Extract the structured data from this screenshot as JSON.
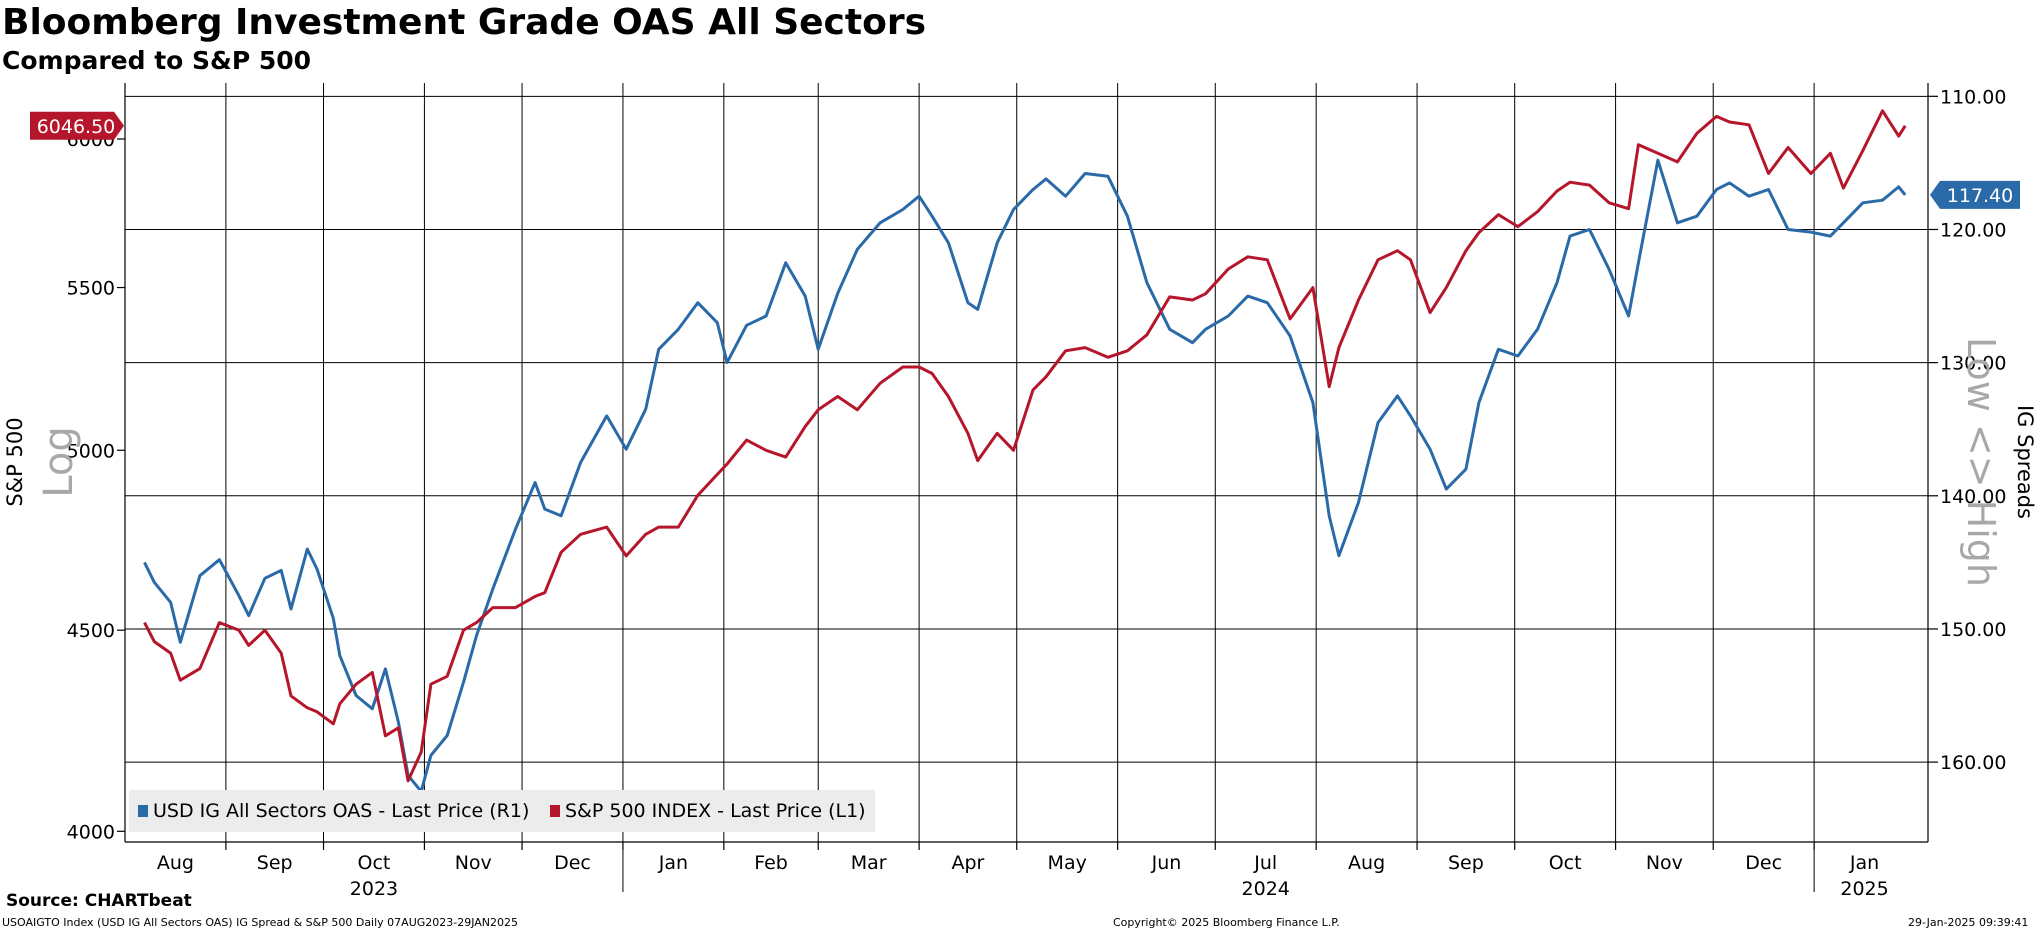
{
  "header": {
    "title": "Bloomberg Investment Grade OAS All Sectors",
    "subtitle": "Compared to S&P 500"
  },
  "footer": {
    "source": "Source: CHARTbeat",
    "description": "USOAIGTO Index (USD IG All Sectors OAS) IG Spread & S&P 500  Daily 07AUG2023-29JAN2025",
    "copyright": "Copyright© 2025 Bloomberg Finance L.P.",
    "timestamp": "29-Jan-2025 09:39:41"
  },
  "colors": {
    "spread": "#2a6aa8",
    "sp500": "#b5162b",
    "grid": "#000000"
  },
  "chart_data": {
    "type": "line",
    "title": "Bloomberg Investment Grade OAS All Sectors",
    "subtitle": "Compared to S&P 500",
    "left_axis": {
      "label": "S&P 500",
      "scale_note": "Log",
      "range": [
        3975,
        6200
      ],
      "ticks": [
        4000,
        4500,
        5000,
        5500,
        6000
      ],
      "tick_labels": [
        "4000",
        "4500",
        "5000",
        "5500",
        "6000"
      ]
    },
    "right_axis": {
      "label": "IG Spreads",
      "note": "Low <> High",
      "inverted": true,
      "range": [
        109,
        166
      ],
      "ticks": [
        110,
        120,
        130,
        140,
        150,
        160
      ],
      "tick_labels": [
        "110.00",
        "120.00",
        "130.00",
        "140.00",
        "150.00",
        "160.00"
      ]
    },
    "x_axis": {
      "months": [
        "Aug",
        "Sep",
        "Oct",
        "Nov",
        "Dec",
        "Jan",
        "Feb",
        "Mar",
        "Apr",
        "May",
        "Jun",
        "Jul",
        "Aug",
        "Sep",
        "Oct",
        "Nov",
        "Dec",
        "Jan"
      ],
      "years": [
        "2023",
        "2024",
        "2025"
      ]
    },
    "legend": [
      "USD IG All Sectors OAS - Last Price (R1)",
      "S&P 500 INDEX - Last Price (L1)"
    ],
    "last_labels": {
      "sp500": "6046.50",
      "spread": "117.40"
    },
    "series": [
      {
        "name": "USD IG All Sectors OAS - Last Price (R1)",
        "axis": "right",
        "color": "#2a6aa8",
        "dates": [
          "2023-08-07",
          "2023-08-10",
          "2023-08-15",
          "2023-08-18",
          "2023-08-24",
          "2023-08-30",
          "2023-09-05",
          "2023-09-08",
          "2023-09-13",
          "2023-09-18",
          "2023-09-21",
          "2023-09-26",
          "2023-09-29",
          "2023-10-04",
          "2023-10-06",
          "2023-10-11",
          "2023-10-16",
          "2023-10-20",
          "2023-10-24",
          "2023-10-27",
          "2023-10-31",
          "2023-11-03",
          "2023-11-08",
          "2023-11-13",
          "2023-11-17",
          "2023-11-22",
          "2023-11-29",
          "2023-12-05",
          "2023-12-08",
          "2023-12-13",
          "2023-12-19",
          "2023-12-27",
          "2024-01-02",
          "2024-01-08",
          "2024-01-12",
          "2024-01-18",
          "2024-01-24",
          "2024-01-30",
          "2024-02-02",
          "2024-02-08",
          "2024-02-14",
          "2024-02-20",
          "2024-02-26",
          "2024-03-01",
          "2024-03-07",
          "2024-03-13",
          "2024-03-20",
          "2024-03-27",
          "2024-04-01",
          "2024-04-05",
          "2024-04-10",
          "2024-04-16",
          "2024-04-19",
          "2024-04-25",
          "2024-04-30",
          "2024-05-06",
          "2024-05-10",
          "2024-05-16",
          "2024-05-22",
          "2024-05-29",
          "2024-06-04",
          "2024-06-10",
          "2024-06-17",
          "2024-06-24",
          "2024-06-28",
          "2024-07-05",
          "2024-07-11",
          "2024-07-17",
          "2024-07-24",
          "2024-07-31",
          "2024-08-05",
          "2024-08-08",
          "2024-08-14",
          "2024-08-20",
          "2024-08-26",
          "2024-08-30",
          "2024-09-05",
          "2024-09-10",
          "2024-09-16",
          "2024-09-20",
          "2024-09-26",
          "2024-10-02",
          "2024-10-08",
          "2024-10-14",
          "2024-10-18",
          "2024-10-24",
          "2024-10-30",
          "2024-11-05",
          "2024-11-08",
          "2024-11-14",
          "2024-11-20",
          "2024-11-26",
          "2024-12-02",
          "2024-12-06",
          "2024-12-12",
          "2024-12-18",
          "2024-12-24",
          "2024-12-31",
          "2025-01-06",
          "2025-01-10",
          "2025-01-16",
          "2025-01-22",
          "2025-01-27",
          "2025-01-29"
        ],
        "values": [
          145.0,
          146.5,
          148.0,
          151.0,
          146.0,
          144.8,
          147.5,
          149.0,
          146.2,
          145.6,
          148.5,
          144.0,
          145.5,
          149.2,
          152.0,
          155.0,
          156.0,
          153.0,
          157.0,
          161.0,
          162.2,
          159.5,
          158.0,
          154.0,
          150.5,
          147.0,
          142.5,
          139.0,
          141.0,
          141.5,
          137.5,
          134.0,
          136.5,
          133.5,
          129.0,
          127.5,
          125.5,
          127.0,
          130.0,
          127.2,
          126.5,
          122.5,
          125.0,
          129.0,
          124.8,
          121.5,
          119.5,
          118.5,
          117.5,
          119.0,
          121.0,
          125.5,
          126.0,
          121.0,
          118.5,
          117.0,
          116.2,
          117.5,
          115.8,
          116.0,
          119.0,
          124.0,
          127.5,
          128.5,
          127.5,
          126.5,
          125.0,
          125.5,
          128.0,
          133.0,
          141.5,
          144.5,
          140.5,
          134.5,
          132.5,
          134.0,
          136.5,
          139.5,
          138.0,
          133.0,
          129.0,
          129.5,
          127.5,
          124.0,
          120.5,
          120.0,
          123.0,
          126.5,
          122.5,
          114.8,
          119.5,
          119.0,
          117.0,
          116.5,
          117.5,
          117.0,
          120.0,
          120.2,
          120.5,
          119.5,
          118.0,
          117.8,
          116.8,
          117.4
        ]
      },
      {
        "name": "S&P 500 INDEX - Last Price (L1)",
        "axis": "left",
        "color": "#b5162b",
        "dates": [
          "2023-08-07",
          "2023-08-10",
          "2023-08-15",
          "2023-08-18",
          "2023-08-24",
          "2023-08-30",
          "2023-09-05",
          "2023-09-08",
          "2023-09-13",
          "2023-09-18",
          "2023-09-21",
          "2023-09-26",
          "2023-09-29",
          "2023-10-04",
          "2023-10-06",
          "2023-10-11",
          "2023-10-16",
          "2023-10-20",
          "2023-10-24",
          "2023-10-27",
          "2023-10-31",
          "2023-11-03",
          "2023-11-08",
          "2023-11-13",
          "2023-11-17",
          "2023-11-22",
          "2023-11-29",
          "2023-12-05",
          "2023-12-08",
          "2023-12-13",
          "2023-12-19",
          "2023-12-27",
          "2024-01-02",
          "2024-01-08",
          "2024-01-12",
          "2024-01-18",
          "2024-01-24",
          "2024-01-30",
          "2024-02-02",
          "2024-02-08",
          "2024-02-14",
          "2024-02-20",
          "2024-02-26",
          "2024-03-01",
          "2024-03-07",
          "2024-03-13",
          "2024-03-20",
          "2024-03-27",
          "2024-04-01",
          "2024-04-05",
          "2024-04-10",
          "2024-04-16",
          "2024-04-19",
          "2024-04-25",
          "2024-04-30",
          "2024-05-06",
          "2024-05-10",
          "2024-05-16",
          "2024-05-22",
          "2024-05-29",
          "2024-06-04",
          "2024-06-10",
          "2024-06-17",
          "2024-06-24",
          "2024-06-28",
          "2024-07-05",
          "2024-07-11",
          "2024-07-17",
          "2024-07-24",
          "2024-07-31",
          "2024-08-05",
          "2024-08-08",
          "2024-08-14",
          "2024-08-20",
          "2024-08-26",
          "2024-08-30",
          "2024-09-05",
          "2024-09-10",
          "2024-09-16",
          "2024-09-20",
          "2024-09-26",
          "2024-10-02",
          "2024-10-08",
          "2024-10-14",
          "2024-10-18",
          "2024-10-24",
          "2024-10-30",
          "2024-11-05",
          "2024-11-08",
          "2024-11-14",
          "2024-11-20",
          "2024-11-26",
          "2024-12-02",
          "2024-12-06",
          "2024-12-12",
          "2024-12-18",
          "2024-12-24",
          "2024-12-31",
          "2025-01-06",
          "2025-01-10",
          "2025-01-16",
          "2025-01-22",
          "2025-01-27",
          "2025-01-29"
        ],
        "values": [
          4520,
          4470,
          4440,
          4370,
          4400,
          4520,
          4500,
          4460,
          4500,
          4440,
          4330,
          4300,
          4290,
          4260,
          4310,
          4360,
          4390,
          4230,
          4250,
          4120,
          4190,
          4360,
          4380,
          4500,
          4520,
          4560,
          4560,
          4590,
          4600,
          4710,
          4760,
          4780,
          4700,
          4760,
          4780,
          4780,
          4870,
          4930,
          4960,
          5030,
          5000,
          4980,
          5070,
          5120,
          5160,
          5120,
          5200,
          5250,
          5250,
          5230,
          5160,
          5050,
          4970,
          5050,
          5000,
          5180,
          5220,
          5300,
          5310,
          5280,
          5300,
          5350,
          5470,
          5460,
          5480,
          5560,
          5600,
          5590,
          5400,
          5500,
          5190,
          5310,
          5460,
          5590,
          5620,
          5590,
          5420,
          5500,
          5620,
          5680,
          5740,
          5700,
          5750,
          5820,
          5850,
          5840,
          5780,
          5760,
          5980,
          5950,
          5920,
          6020,
          6080,
          6060,
          6050,
          5880,
          5970,
          5880,
          5950,
          5830,
          5960,
          6100,
          6010,
          6046.5
        ]
      }
    ]
  }
}
